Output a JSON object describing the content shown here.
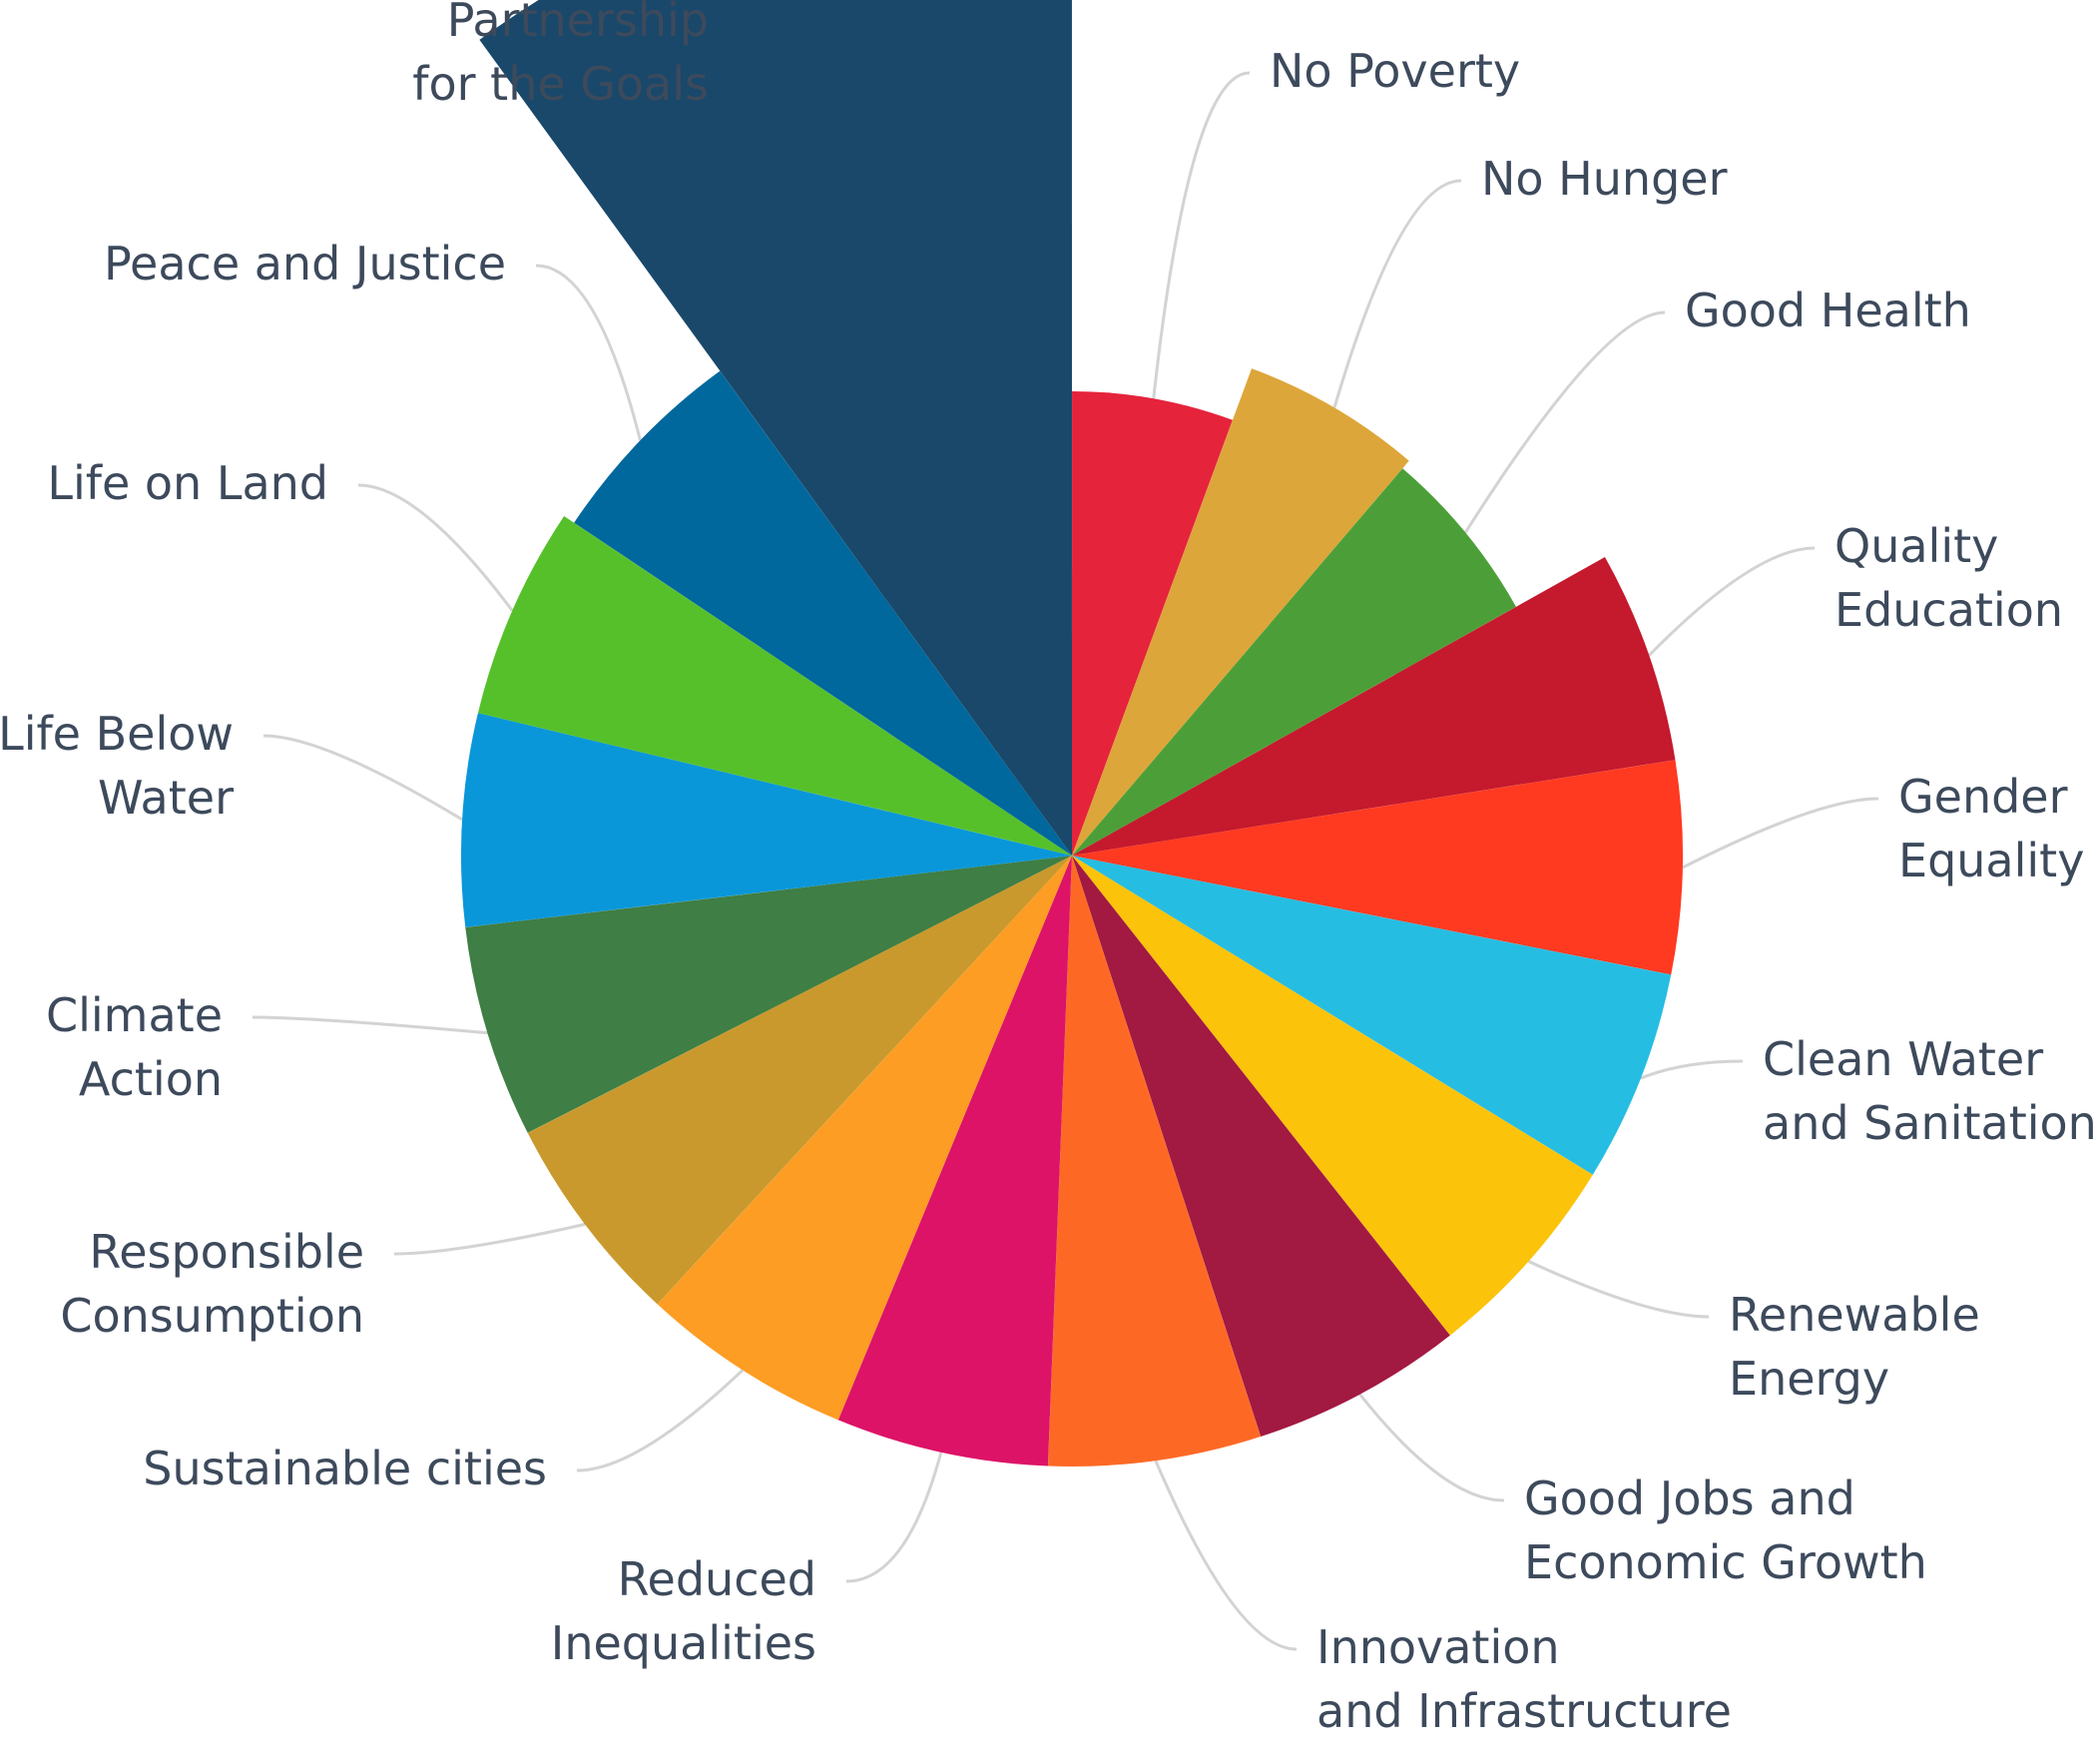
{
  "chart_data": {
    "type": "pie",
    "variant": "variable-radius pie (rose)",
    "legend": "none (labels placed outside slices with leader lines)",
    "slices": [
      {
        "label": [
          "No Poverty"
        ],
        "radius_value": 0.46,
        "color": "#e5243b"
      },
      {
        "label": [
          "No Hunger"
        ],
        "radius_value": 0.52,
        "color": "#dda63a"
      },
      {
        "label": [
          "Good Health"
        ],
        "radius_value": 0.58,
        "color": "#4c9f38"
      },
      {
        "label": [
          "Quality",
          "Education"
        ],
        "radius_value": 0.61,
        "color": "#c5192d"
      },
      {
        "label": [
          "Gender",
          "Equality"
        ],
        "radius_value": 0.61,
        "color": "#ff3a21"
      },
      {
        "label": [
          "Clean Water",
          "and Sanitation"
        ],
        "radius_value": 0.61,
        "color": "#26bde2"
      },
      {
        "label": [
          "Renewable",
          "Energy"
        ],
        "radius_value": 0.61,
        "color": "#fcc30b"
      },
      {
        "label": [
          "Good Jobs and",
          "Economic Growth"
        ],
        "radius_value": 0.61,
        "color": "#a21942"
      },
      {
        "label": [
          "Innovation",
          "and Infrastructure"
        ],
        "radius_value": 0.61,
        "color": "#fd6925"
      },
      {
        "label": [
          "Reduced",
          "Inequalities"
        ],
        "radius_value": 0.61,
        "color": "#dd1367"
      },
      {
        "label": [
          "Sustainable cities"
        ],
        "radius_value": 0.61,
        "color": "#fd9d24"
      },
      {
        "label": [
          "Responsible",
          "Consumption"
        ],
        "radius_value": 0.61,
        "color": "#c9992d"
      },
      {
        "label": [
          "Climate",
          "Action"
        ],
        "radius_value": 0.61,
        "color": "#3f7e44"
      },
      {
        "label": [
          "Life Below",
          "Water"
        ],
        "radius_value": 0.61,
        "color": "#0a97d9"
      },
      {
        "label": [
          "Life on Land"
        ],
        "radius_value": 0.61,
        "color": "#56c02b"
      },
      {
        "label": [
          "Peace and Justice"
        ],
        "radius_value": 0.74,
        "color": "#00689d"
      },
      {
        "label": [
          "Partnership",
          "for the Goals"
        ],
        "radius_value": 1.0,
        "color": "#19486a"
      }
    ]
  }
}
